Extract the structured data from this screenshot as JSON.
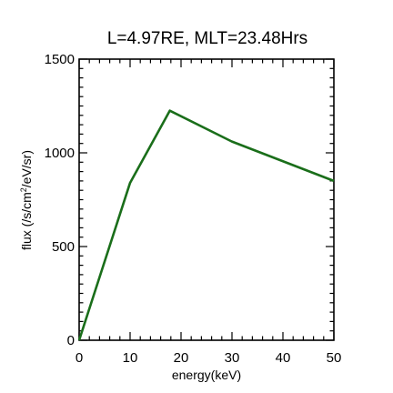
{
  "chart_data": {
    "type": "line",
    "title": "L=4.97RE, MLT=23.48Hrs",
    "xlabel": "energy(keV)",
    "ylabel_prefix": "flux (/s/cm",
    "ylabel_sup": "2",
    "ylabel_suffix": "/eV/sr)",
    "xlim": [
      0,
      50
    ],
    "ylim": [
      0,
      1500
    ],
    "x_ticks": [
      "0",
      "10",
      "20",
      "30",
      "40",
      "50"
    ],
    "y_ticks": [
      "0",
      "500",
      "1000",
      "1500"
    ],
    "grid": false,
    "series": [
      {
        "color": "#1a6e1a",
        "x": [
          0,
          10,
          17.8,
          30,
          50
        ],
        "y": [
          0,
          840,
          1225,
          1060,
          850
        ]
      }
    ]
  }
}
